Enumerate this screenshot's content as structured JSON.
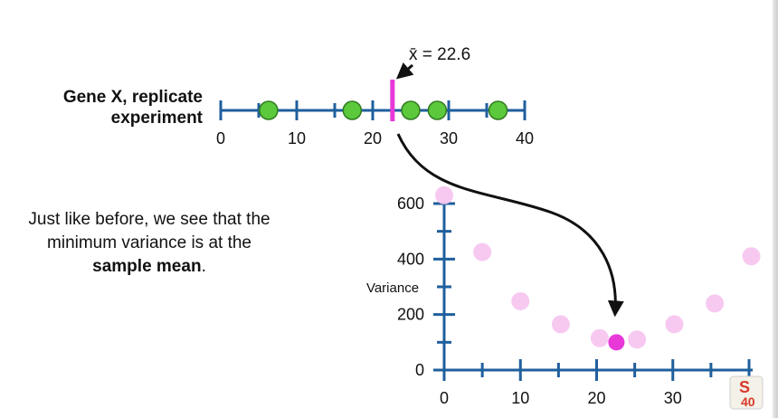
{
  "number_line": {
    "label_line1": "Gene X, replicate",
    "label_line2": "experiment",
    "ticks": [
      0,
      10,
      20,
      30,
      40
    ],
    "tick_labels": [
      "0",
      "10",
      "20",
      "30",
      "40"
    ],
    "points": [
      6.3,
      17.3,
      25.0,
      28.5,
      36.5
    ],
    "mean_value": 22.6,
    "mean_label": "x̄ = 22.6",
    "axis_color": "#1f5f9e",
    "point_color": "#5cc93c",
    "mean_color": "#e838d8"
  },
  "caption": {
    "part1": "Just like before, we see that the minimum variance is at the ",
    "bold": "sample mean",
    "part2": "."
  },
  "chart_data": {
    "type": "scatter",
    "ylabel": "Variance",
    "x_ticks": [
      0,
      10,
      20,
      30,
      40
    ],
    "x_tick_labels": [
      "0",
      "10",
      "20",
      "30",
      "40"
    ],
    "y_ticks": [
      0,
      200,
      400,
      600
    ],
    "y_tick_labels": [
      "0",
      "200",
      "400",
      "600"
    ],
    "xlim": [
      0,
      40
    ],
    "ylim": [
      0,
      650
    ],
    "series": [
      {
        "color": "#f7c6f0",
        "x": [
          0,
          5,
          10,
          15.3,
          20.4,
          25.3,
          30.2,
          35.5,
          40.3
        ],
        "y": [
          630,
          425,
          248,
          165,
          115,
          110,
          165,
          240,
          410
        ]
      },
      {
        "color": "#e838d8",
        "x": [
          22.6
        ],
        "y": [
          100
        ]
      }
    ],
    "grid": false,
    "axis_color": "#1f5f9e"
  },
  "logo": {
    "text_top": "S",
    "text_bottom": "40"
  }
}
